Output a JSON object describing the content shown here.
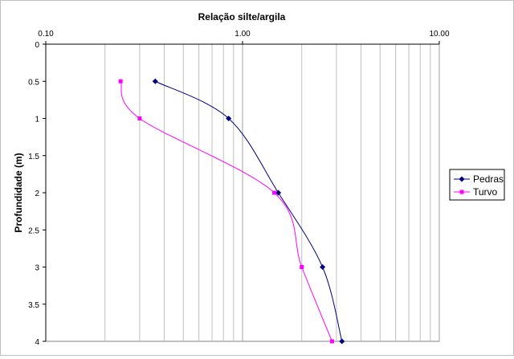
{
  "chart_data": {
    "type": "line",
    "title": "Relação silte/argila",
    "xlabel": "",
    "ylabel": "Profundidade (m)",
    "x_scale": "log",
    "xlim": [
      0.1,
      10
    ],
    "ylim": [
      0,
      4
    ],
    "y_inverted": true,
    "x_ticks": [
      0.1,
      1,
      10
    ],
    "x_tick_labels": [
      "0.10",
      "1.00",
      "10.00"
    ],
    "y_ticks": [
      0,
      0.5,
      1,
      1.5,
      2,
      2.5,
      3,
      3.5,
      4
    ],
    "y_tick_labels": [
      "0",
      "0.5",
      "1",
      "1.5",
      "2",
      "2.5",
      "3",
      "3.5",
      "4"
    ],
    "grid": true,
    "legend_position": "right",
    "series": [
      {
        "name": "Pedras",
        "color": "#000080",
        "marker": "diamond",
        "points": [
          {
            "x": 0.36,
            "y": 0.5
          },
          {
            "x": 0.85,
            "y": 1.0
          },
          {
            "x": 1.52,
            "y": 2.0
          },
          {
            "x": 2.55,
            "y": 3.0
          },
          {
            "x": 3.2,
            "y": 4.0
          }
        ]
      },
      {
        "name": "Turvo",
        "color": "#ff00ff",
        "marker": "square",
        "points": [
          {
            "x": 0.24,
            "y": 0.5
          },
          {
            "x": 0.3,
            "y": 1.0
          },
          {
            "x": 1.45,
            "y": 2.0
          },
          {
            "x": 2.0,
            "y": 3.0
          },
          {
            "x": 2.85,
            "y": 4.0
          }
        ]
      }
    ]
  }
}
